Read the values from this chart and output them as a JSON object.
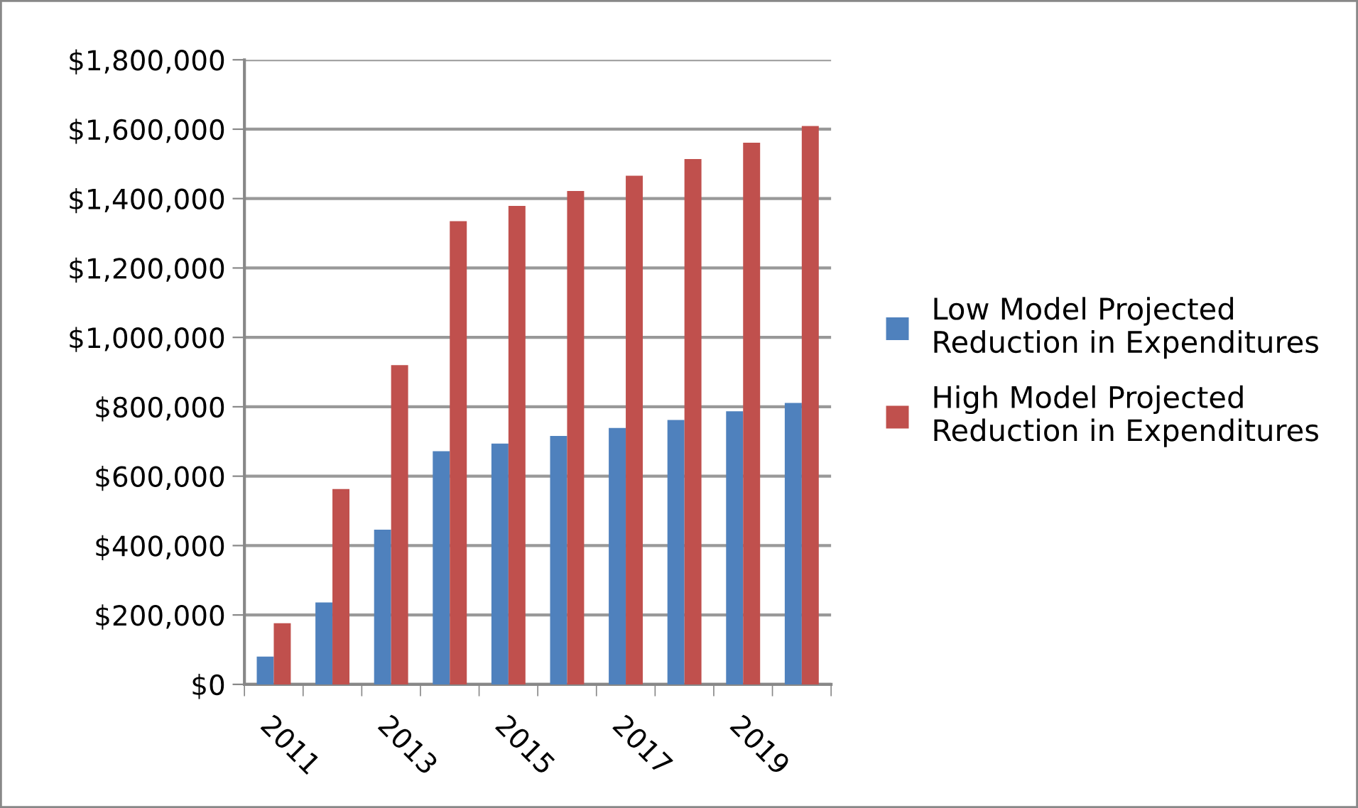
{
  "chart_data": {
    "type": "bar",
    "categories": [
      "2011",
      null,
      "2013",
      null,
      "2015",
      null,
      "2017",
      null,
      "2019",
      null
    ],
    "series": [
      {
        "name": "Low Model Projected Reduction in Expenditures",
        "color": "#4f81bd",
        "values": [
          80000,
          236000,
          446000,
          672000,
          694000,
          716000,
          739000,
          762000,
          787000,
          811000
        ]
      },
      {
        "name": "High Model Projected Reduction in Expenditures",
        "color": "#c0504d",
        "values": [
          176000,
          563000,
          920000,
          1335000,
          1379000,
          1422000,
          1466000,
          1514000,
          1561000,
          1609000
        ]
      }
    ],
    "ylim": [
      0,
      1800000
    ],
    "yticks": [
      {
        "value": 0,
        "label": "$0"
      },
      {
        "value": 200000,
        "label": "$200,000"
      },
      {
        "value": 400000,
        "label": "$400,000"
      },
      {
        "value": 600000,
        "label": "$600,000"
      },
      {
        "value": 800000,
        "label": "$800,000"
      },
      {
        "value": 1000000,
        "label": "$1,000,000"
      },
      {
        "value": 1200000,
        "label": "$1,200,000"
      },
      {
        "value": 1400000,
        "label": "$1,400,000"
      },
      {
        "value": 1600000,
        "label": "$1,600,000"
      },
      {
        "value": 1800000,
        "label": "$1,800,000"
      }
    ],
    "grid": "y",
    "legend": "right"
  }
}
